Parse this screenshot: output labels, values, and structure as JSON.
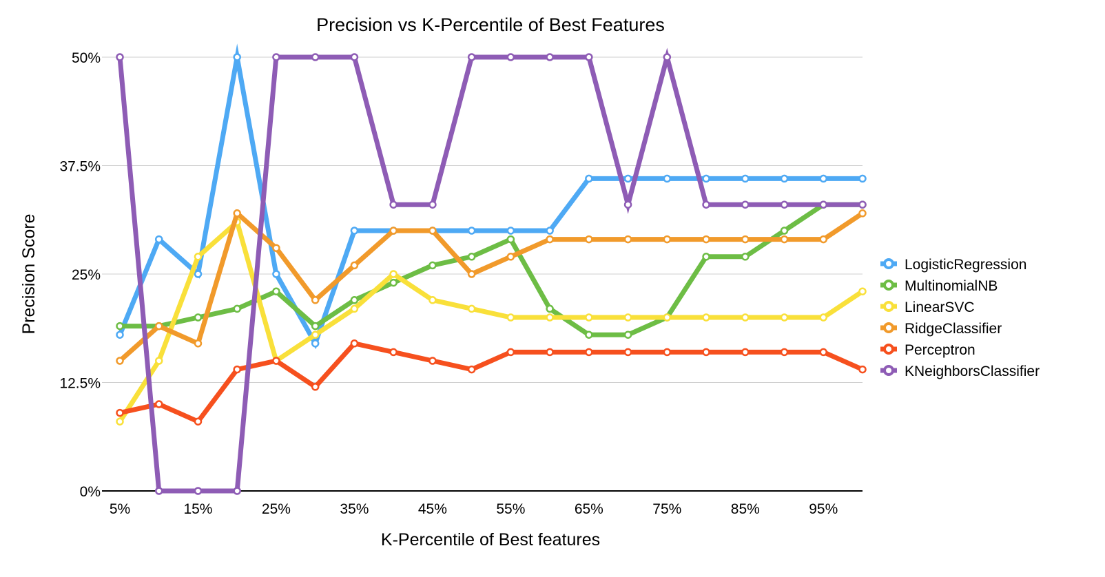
{
  "chart_data": {
    "type": "line",
    "title": "Precision vs K-Percentile of Best Features",
    "xlabel": "K-Percentile of Best features",
    "ylabel": "Precision Score",
    "x": [
      5,
      10,
      15,
      20,
      25,
      30,
      35,
      40,
      45,
      50,
      55,
      60,
      65,
      70,
      75,
      80,
      85,
      90,
      95,
      100
    ],
    "x_tick_labels": [
      "5%",
      "15%",
      "25%",
      "35%",
      "45%",
      "55%",
      "65%",
      "75%",
      "85%",
      "95%"
    ],
    "y_tick_labels": [
      "0%",
      "12.5%",
      "25%",
      "37.5%",
      "50%"
    ],
    "y_ticks": [
      0,
      12.5,
      25,
      37.5,
      50
    ],
    "ylim": [
      0,
      50
    ],
    "grid": true,
    "legend_position": "right",
    "series": [
      {
        "name": "LogisticRegression",
        "color": "#4EA9F4",
        "values": [
          18,
          29,
          25,
          50,
          25,
          17,
          30,
          30,
          30,
          30,
          30,
          30,
          36,
          36,
          36,
          36,
          36,
          36,
          36,
          36
        ]
      },
      {
        "name": "MultinomialNB",
        "color": "#6DBD45",
        "values": [
          19,
          19,
          20,
          21,
          23,
          19,
          22,
          24,
          26,
          27,
          29,
          21,
          18,
          18,
          20,
          27,
          27,
          30,
          33,
          33
        ]
      },
      {
        "name": "LinearSVC",
        "color": "#F9E03A",
        "values": [
          8,
          15,
          27,
          31,
          15,
          18,
          21,
          25,
          22,
          21,
          20,
          20,
          20,
          20,
          20,
          20,
          20,
          20,
          20,
          23
        ]
      },
      {
        "name": "RidgeClassifier",
        "color": "#F19A2B",
        "values": [
          15,
          19,
          17,
          32,
          28,
          22,
          26,
          30,
          30,
          25,
          27,
          29,
          29,
          29,
          29,
          29,
          29,
          29,
          29,
          32
        ]
      },
      {
        "name": "Perceptron",
        "color": "#F6501E",
        "values": [
          9,
          10,
          8,
          14,
          15,
          12,
          17,
          16,
          15,
          14,
          16,
          16,
          16,
          16,
          16,
          16,
          16,
          16,
          16,
          14
        ]
      },
      {
        "name": "KNeighborsClassifier",
        "color": "#8E5CB5",
        "values": [
          50,
          0,
          0,
          0,
          50,
          50,
          50,
          33,
          33,
          50,
          50,
          50,
          50,
          33,
          50,
          33,
          33,
          33,
          33,
          33
        ]
      }
    ]
  }
}
